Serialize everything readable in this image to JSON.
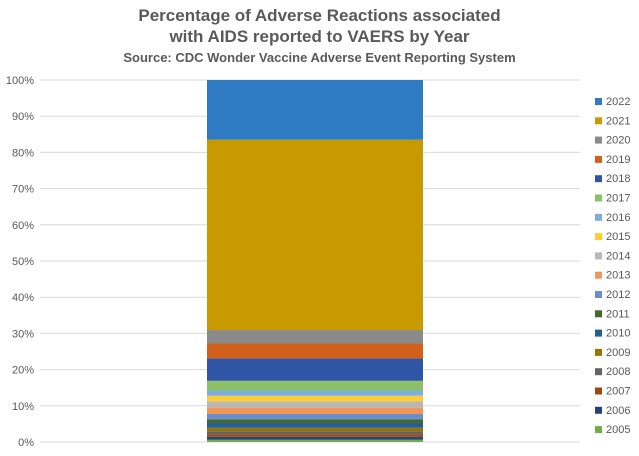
{
  "chart_data": {
    "type": "bar",
    "stacked": true,
    "percent_stacked": true,
    "title": "Percentage of Adverse Reactions associated with AIDS reported to VAERS by Year",
    "title_line1": "Percentage of Adverse Reactions associated",
    "title_line2": "with AIDS reported to VAERS by Year",
    "subtitle": "Source: CDC Wonder Vaccine Adverse Event Reporting System",
    "xlabel": "",
    "ylabel": "",
    "ylim": [
      0,
      100
    ],
    "y_ticks": [
      "0%",
      "10%",
      "20%",
      "30%",
      "40%",
      "50%",
      "60%",
      "70%",
      "80%",
      "90%",
      "100%"
    ],
    "grid": true,
    "legend_position": "right",
    "categories": [
      ""
    ],
    "series": [
      {
        "name": "2005",
        "values": [
          0.6
        ],
        "color": "#70AD47"
      },
      {
        "name": "2006",
        "values": [
          0.8
        ],
        "color": "#264478"
      },
      {
        "name": "2007",
        "values": [
          0.7
        ],
        "color": "#9E480E"
      },
      {
        "name": "2008",
        "values": [
          0.8
        ],
        "color": "#636363"
      },
      {
        "name": "2009",
        "values": [
          0.9
        ],
        "color": "#997300"
      },
      {
        "name": "2010",
        "values": [
          1.3
        ],
        "color": "#255E91"
      },
      {
        "name": "2011",
        "values": [
          1.0
        ],
        "color": "#43682B"
      },
      {
        "name": "2012",
        "values": [
          1.4
        ],
        "color": "#698ED0"
      },
      {
        "name": "2013",
        "values": [
          1.8
        ],
        "color": "#F1975A"
      },
      {
        "name": "2014",
        "values": [
          1.6
        ],
        "color": "#B7B7B7"
      },
      {
        "name": "2015",
        "values": [
          1.5
        ],
        "color": "#FFCD33"
      },
      {
        "name": "2016",
        "values": [
          1.4
        ],
        "color": "#7CAFDD"
      },
      {
        "name": "2017",
        "values": [
          2.6
        ],
        "color": "#8CC168"
      },
      {
        "name": "2018",
        "values": [
          6.0
        ],
        "color": "#2F55A4"
      },
      {
        "name": "2019",
        "values": [
          4.0
        ],
        "color": "#D0601A"
      },
      {
        "name": "2020",
        "values": [
          3.6
        ],
        "color": "#8A8A8A"
      },
      {
        "name": "2021",
        "values": [
          51.0
        ],
        "color": "#C99A00"
      },
      {
        "name": "2022",
        "values": [
          16.0
        ],
        "color": "#2E7BC4"
      }
    ]
  }
}
